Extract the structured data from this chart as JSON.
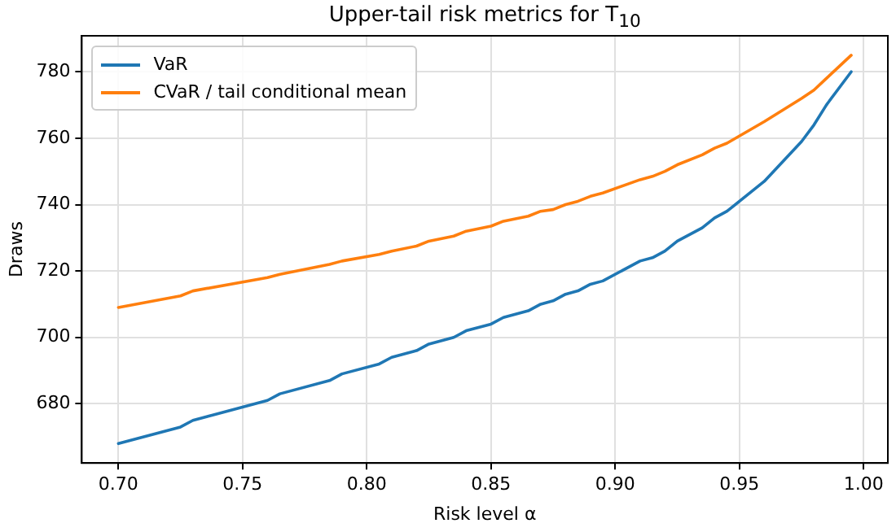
{
  "chart_data": {
    "type": "line",
    "title": "Upper-tail risk metrics for T$_{10}$",
    "xlabel": "Risk level α",
    "ylabel": "Draws",
    "x": [
      0.7,
      0.725,
      0.73,
      0.76,
      0.765,
      0.785,
      0.79,
      0.805,
      0.81,
      0.82,
      0.825,
      0.835,
      0.84,
      0.85,
      0.855,
      0.865,
      0.87,
      0.875,
      0.88,
      0.885,
      0.89,
      0.895,
      0.91,
      0.915,
      0.92,
      0.925,
      0.935,
      0.94,
      0.945,
      0.96,
      0.975,
      0.98,
      0.985,
      0.995
    ],
    "series": [
      {
        "name": "VaR",
        "color": "#1f77b4",
        "values": [
          668,
          673,
          675,
          681,
          683,
          687,
          689,
          692,
          694,
          696,
          698,
          700,
          702,
          704,
          706,
          708,
          710,
          711,
          713,
          714,
          716,
          717,
          723,
          724,
          726,
          729,
          733,
          736,
          738,
          747,
          759,
          764,
          770,
          780
        ]
      },
      {
        "name": "CVaR / tail conditional mean",
        "color": "#ff7f0e",
        "values": [
          709,
          712.5,
          714,
          718,
          719,
          722,
          723,
          725,
          726,
          727.5,
          729,
          730.5,
          732,
          733.5,
          735,
          736.5,
          738,
          738.5,
          740,
          741,
          742.5,
          743.5,
          747.5,
          748.5,
          750,
          752,
          755,
          757,
          758.5,
          765,
          772,
          774.5,
          778,
          785
        ]
      }
    ],
    "xlim": [
      0.68525,
      1.00975
    ],
    "xticks": [
      {
        "value": 0.7,
        "label": "0.70"
      },
      {
        "value": 0.75,
        "label": "0.75"
      },
      {
        "value": 0.8,
        "label": "0.80"
      },
      {
        "value": 0.85,
        "label": "0.85"
      },
      {
        "value": 0.9,
        "label": "0.90"
      },
      {
        "value": 0.95,
        "label": "0.95"
      },
      {
        "value": 1.0,
        "label": "1.00"
      }
    ],
    "ylim": [
      662.15,
      790.85
    ],
    "yticks": [
      680,
      700,
      720,
      740,
      760,
      780
    ],
    "grid": true,
    "legend": "top left",
    "marker": "none",
    "line_style": "solid"
  }
}
